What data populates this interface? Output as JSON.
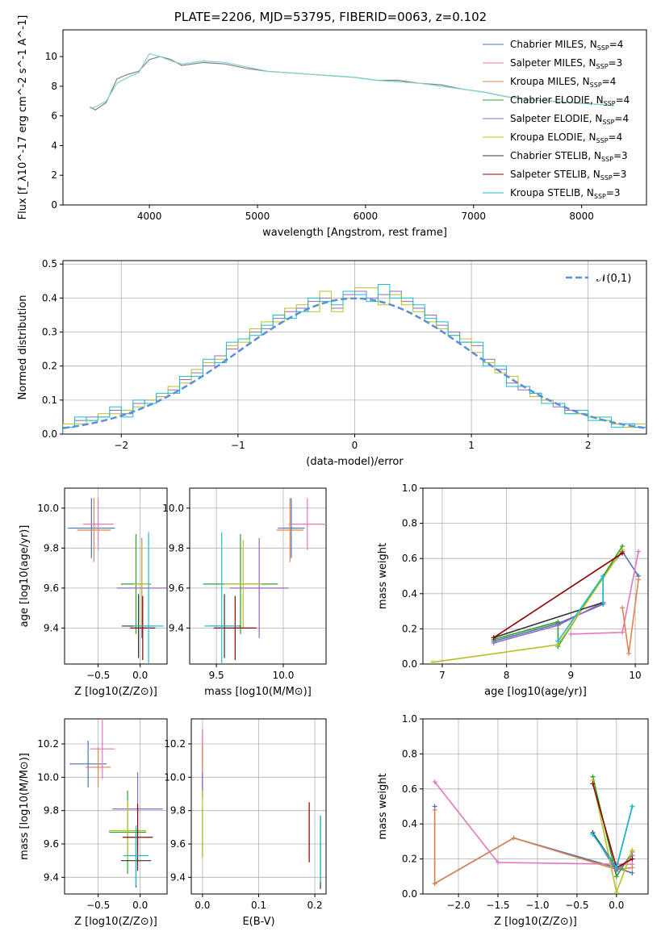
{
  "title": "PLATE=2206, MJD=53795, FIBERID=0063, z=0.102",
  "colors": [
    "#4c72b0",
    "#e377c2",
    "#dd8452",
    "#2ca02c",
    "#9467bd",
    "#bcbd22",
    "#333333",
    "#8c0000",
    "#17becf"
  ],
  "legend_labels": [
    "Chabrier MILES, N$SSP$=4",
    "Salpeter MILES, N$SSP$=3",
    "Kroupa MILES, N$SSP$=4",
    "Chabrier ELODIE, N$SSP$=4",
    "Salpeter ELODIE, N$SSP$=4",
    "Kroupa ELODIE, N$SSP$=4",
    "Chabrier STELIB, N$SSP$=3",
    "Salpeter STELIB, N$SSP$=3",
    "Kroupa STELIB, N$SSP$=3"
  ],
  "chart_data": [
    {
      "id": "spectrum",
      "type": "line",
      "xlabel": "wavelength [Angstrom, rest frame]",
      "ylabel": "Flux [f_λ10^-17 erg cm^-2 s^-1 A^-1]",
      "xlim": [
        3200,
        8600
      ],
      "ylim": [
        0,
        11.8
      ],
      "xticks": [
        4000,
        5000,
        6000,
        7000,
        8000
      ],
      "yticks": [
        0,
        2,
        4,
        6,
        8,
        10
      ],
      "series": [
        {
          "name": "data",
          "x": [
            3450,
            3500,
            3600,
            3700,
            3800,
            3900,
            4000,
            4100,
            4200,
            4300,
            4500,
            4700,
            4900,
            5100,
            5300,
            5500,
            5700,
            5900,
            6100,
            6300,
            6500,
            6700,
            6900,
            7100,
            7300,
            7500,
            7700,
            7900,
            8100,
            8300
          ],
          "y": [
            6.6,
            6.4,
            6.9,
            8.5,
            8.8,
            9.0,
            9.8,
            10.0,
            9.8,
            9.4,
            9.6,
            9.5,
            9.2,
            9.0,
            8.9,
            8.8,
            8.7,
            8.6,
            8.4,
            8.4,
            8.2,
            8.1,
            7.8,
            7.6,
            7.3,
            7.1,
            7.0,
            6.9,
            6.8,
            6.7
          ]
        },
        {
          "name": "model",
          "x": [
            3450,
            3500,
            3600,
            3700,
            3800,
            3900,
            4000,
            4100,
            4200,
            4300,
            4500,
            4700,
            4900,
            5100,
            5300,
            5500,
            5700,
            5900,
            6100,
            6300,
            6500,
            6700,
            6900,
            7100,
            7300,
            7500,
            7700,
            7900,
            8100,
            8300
          ],
          "y": [
            6.5,
            6.6,
            7.0,
            8.2,
            8.6,
            8.9,
            10.2,
            10.0,
            9.7,
            9.5,
            9.7,
            9.6,
            9.3,
            9.0,
            8.9,
            8.8,
            8.7,
            8.6,
            8.4,
            8.3,
            8.2,
            8.0,
            7.8,
            7.6,
            7.3,
            7.1,
            7.0,
            6.9,
            6.8,
            6.7
          ]
        }
      ]
    },
    {
      "id": "residuals",
      "type": "bar",
      "xlabel": "(data-model)/error",
      "ylabel": "Normed distribution",
      "xlim": [
        -2.5,
        2.5
      ],
      "ylim": [
        0,
        0.51
      ],
      "xticks": [
        -2,
        -1,
        0,
        1,
        2
      ],
      "yticks": [
        0,
        0.1,
        0.2,
        0.3,
        0.4,
        0.5
      ],
      "legend": "𝒩(0,1)",
      "bin_edges": [
        -2.5,
        -2.4,
        -2.3,
        -2.2,
        -2.1,
        -2.0,
        -1.9,
        -1.8,
        -1.7,
        -1.6,
        -1.5,
        -1.4,
        -1.3,
        -1.2,
        -1.1,
        -1.0,
        -0.9,
        -0.8,
        -0.7,
        -0.6,
        -0.5,
        -0.4,
        -0.3,
        -0.2,
        -0.1,
        0.0,
        0.1,
        0.2,
        0.3,
        0.4,
        0.5,
        0.6,
        0.7,
        0.8,
        0.9,
        1.0,
        1.1,
        1.2,
        1.3,
        1.4,
        1.5,
        1.6,
        1.7,
        1.8,
        1.9,
        2.0,
        2.1,
        2.2,
        2.3,
        2.4,
        2.5
      ],
      "series": [
        {
          "values": [
            0.02,
            0.04,
            0.05,
            0.05,
            0.07,
            0.06,
            0.09,
            0.1,
            0.11,
            0.13,
            0.16,
            0.18,
            0.2,
            0.23,
            0.25,
            0.28,
            0.3,
            0.31,
            0.34,
            0.36,
            0.37,
            0.39,
            0.4,
            0.37,
            0.41,
            0.42,
            0.4,
            0.41,
            0.42,
            0.39,
            0.37,
            0.35,
            0.32,
            0.3,
            0.27,
            0.26,
            0.22,
            0.19,
            0.15,
            0.13,
            0.12,
            0.1,
            0.08,
            0.07,
            0.06,
            0.05,
            0.04,
            0.03,
            0.03,
            0.02
          ]
        },
        {
          "values": [
            0.03,
            0.03,
            0.04,
            0.06,
            0.06,
            0.07,
            0.08,
            0.1,
            0.11,
            0.14,
            0.15,
            0.19,
            0.21,
            0.22,
            0.26,
            0.27,
            0.31,
            0.33,
            0.33,
            0.37,
            0.38,
            0.36,
            0.42,
            0.36,
            0.4,
            0.43,
            0.43,
            0.38,
            0.41,
            0.38,
            0.36,
            0.33,
            0.31,
            0.29,
            0.28,
            0.24,
            0.21,
            0.18,
            0.17,
            0.14,
            0.11,
            0.1,
            0.09,
            0.06,
            0.06,
            0.05,
            0.04,
            0.03,
            0.02,
            0.03
          ]
        },
        {
          "values": [
            0.02,
            0.05,
            0.04,
            0.05,
            0.08,
            0.05,
            0.1,
            0.09,
            0.12,
            0.12,
            0.17,
            0.17,
            0.22,
            0.21,
            0.27,
            0.28,
            0.29,
            0.32,
            0.35,
            0.34,
            0.36,
            0.4,
            0.39,
            0.38,
            0.42,
            0.41,
            0.39,
            0.44,
            0.4,
            0.4,
            0.38,
            0.34,
            0.33,
            0.29,
            0.27,
            0.27,
            0.2,
            0.2,
            0.14,
            0.14,
            0.12,
            0.09,
            0.09,
            0.06,
            0.07,
            0.04,
            0.05,
            0.02,
            0.03,
            0.02
          ]
        }
      ],
      "gaussian": {
        "mu": 0,
        "sigma": 1
      }
    },
    {
      "id": "age-vs-Z",
      "type": "scatter",
      "xlabel": "Z [log10(Z/Z⊙)]",
      "ylabel": "age  [log10(age/yr)]",
      "xlim": [
        -0.9,
        0.32
      ],
      "ylim": [
        9.22,
        10.1
      ],
      "xticks": [
        -0.5,
        0.0
      ],
      "yticks": [
        9.4,
        9.6,
        9.8,
        10.0
      ],
      "points": [
        {
          "x": -0.58,
          "y": 9.9,
          "xerr": 0.28,
          "yerr": 0.15,
          "c": 0
        },
        {
          "x": -0.5,
          "y": 9.92,
          "xerr": 0.18,
          "yerr": 0.13,
          "c": 1
        },
        {
          "x": -0.55,
          "y": 9.89,
          "xerr": 0.2,
          "yerr": 0.16,
          "c": 2
        },
        {
          "x": -0.05,
          "y": 9.62,
          "xerr": 0.18,
          "yerr": 0.25,
          "c": 3
        },
        {
          "x": 0.02,
          "y": 9.6,
          "xerr": 0.3,
          "yerr": 0.25,
          "c": 4
        },
        {
          "x": 0.02,
          "y": 9.62,
          "xerr": 0.1,
          "yerr": 0.22,
          "c": 5
        },
        {
          "x": -0.02,
          "y": 9.41,
          "xerr": 0.2,
          "yerr": 0.16,
          "c": 6
        },
        {
          "x": 0.03,
          "y": 9.4,
          "xerr": 0.15,
          "yerr": 0.16,
          "c": 7
        },
        {
          "x": 0.1,
          "y": 9.41,
          "xerr": 0.18,
          "yerr": 0.47,
          "c": 8
        }
      ]
    },
    {
      "id": "age-vs-mass",
      "type": "scatter",
      "xlabel": "mass [log10(M/M⊙)]",
      "ylabel": "",
      "xlim": [
        9.3,
        10.32
      ],
      "ylim": [
        9.22,
        10.1
      ],
      "xticks": [
        9.5,
        10.0
      ],
      "yticks": [
        9.4,
        9.6,
        9.8,
        10.0
      ],
      "points": [
        {
          "x": 10.06,
          "y": 9.9,
          "xerr": 0.1,
          "yerr": 0.15,
          "c": 0
        },
        {
          "x": 10.18,
          "y": 9.92,
          "xerr": 0.14,
          "yerr": 0.13,
          "c": 1
        },
        {
          "x": 10.05,
          "y": 9.89,
          "xerr": 0.1,
          "yerr": 0.16,
          "c": 2
        },
        {
          "x": 9.68,
          "y": 9.62,
          "xerr": 0.28,
          "yerr": 0.25,
          "c": 3
        },
        {
          "x": 9.82,
          "y": 9.6,
          "xerr": 0.22,
          "yerr": 0.25,
          "c": 4
        },
        {
          "x": 9.7,
          "y": 9.62,
          "xerr": 0.14,
          "yerr": 0.22,
          "c": 5
        },
        {
          "x": 9.56,
          "y": 9.41,
          "xerr": 0.12,
          "yerr": 0.16,
          "c": 6
        },
        {
          "x": 9.64,
          "y": 9.4,
          "xerr": 0.16,
          "yerr": 0.16,
          "c": 7
        },
        {
          "x": 9.54,
          "y": 9.41,
          "xerr": 0.13,
          "yerr": 0.47,
          "c": 8
        }
      ]
    },
    {
      "id": "mass-weight-vs-age",
      "type": "line",
      "xlabel": "age  [log10(age/yr)]",
      "ylabel": "mass weight",
      "xlim": [
        6.7,
        10.2
      ],
      "ylim": [
        0,
        1.0
      ],
      "xticks": [
        7,
        8,
        9,
        10
      ],
      "yticks": [
        0,
        0.2,
        0.4,
        0.6,
        0.8,
        1.0
      ],
      "series": [
        {
          "c": 0,
          "x": [
            7.8,
            8.8,
            9.5,
            9.5,
            9.8,
            10.05
          ],
          "y": [
            0.13,
            0.23,
            0.34,
            0.5,
            0.64,
            0.5
          ]
        },
        {
          "c": 1,
          "x": [
            9.0,
            9.8,
            10.05
          ],
          "y": [
            0.17,
            0.18,
            0.64
          ]
        },
        {
          "c": 2,
          "x": [
            9.8,
            9.9,
            10.05
          ],
          "y": [
            0.32,
            0.06,
            0.48
          ]
        },
        {
          "c": 3,
          "x": [
            7.8,
            8.8,
            8.8,
            9.8
          ],
          "y": [
            0.14,
            0.24,
            0.1,
            0.67
          ]
        },
        {
          "c": 4,
          "x": [
            7.8,
            8.8,
            9.5
          ],
          "y": [
            0.12,
            0.22,
            0.35
          ]
        },
        {
          "c": 5,
          "x": [
            6.85,
            8.8,
            9.8
          ],
          "y": [
            0.01,
            0.11,
            0.65
          ]
        },
        {
          "c": 6,
          "x": [
            7.8,
            9.5
          ],
          "y": [
            0.15,
            0.35
          ]
        },
        {
          "c": 7,
          "x": [
            7.8,
            9.8
          ],
          "y": [
            0.15,
            0.63
          ]
        },
        {
          "c": 8,
          "x": [
            8.8,
            9.5,
            9.5
          ],
          "y": [
            0.13,
            0.5,
            0.35
          ]
        }
      ]
    },
    {
      "id": "mass-vs-Z",
      "type": "scatter",
      "xlabel": "Z [log10(Z/Z⊙)]",
      "ylabel": "mass [log10(M/M⊙)]",
      "xlim": [
        -0.9,
        0.32
      ],
      "ylim": [
        9.3,
        10.35
      ],
      "xticks": [
        -0.5,
        0.0
      ],
      "yticks": [
        9.4,
        9.6,
        9.8,
        10.0,
        10.2
      ],
      "points": [
        {
          "x": -0.62,
          "y": 10.08,
          "xerr": 0.22,
          "yerr": 0.14,
          "c": 0
        },
        {
          "x": -0.45,
          "y": 10.17,
          "xerr": 0.15,
          "yerr": 0.18,
          "c": 1
        },
        {
          "x": -0.5,
          "y": 10.06,
          "xerr": 0.15,
          "yerr": 0.12,
          "c": 2
        },
        {
          "x": -0.15,
          "y": 9.67,
          "xerr": 0.22,
          "yerr": 0.25,
          "c": 3
        },
        {
          "x": -0.03,
          "y": 9.81,
          "xerr": 0.3,
          "yerr": 0.22,
          "c": 4
        },
        {
          "x": -0.15,
          "y": 9.68,
          "xerr": 0.22,
          "yerr": 0.18,
          "c": 5
        },
        {
          "x": -0.05,
          "y": 9.5,
          "xerr": 0.18,
          "yerr": 0.16,
          "c": 6
        },
        {
          "x": -0.03,
          "y": 9.64,
          "xerr": 0.18,
          "yerr": 0.2,
          "c": 7
        },
        {
          "x": -0.05,
          "y": 9.53,
          "xerr": 0.15,
          "yerr": 0.18,
          "c": 8
        }
      ]
    },
    {
      "id": "mass-vs-EBV",
      "type": "scatter",
      "xlabel": "E(B-V)",
      "ylabel": "",
      "xlim": [
        -0.02,
        0.22
      ],
      "ylim": [
        9.3,
        10.35
      ],
      "xticks": [
        0.0,
        0.1,
        0.2
      ],
      "yticks": [
        9.4,
        9.6,
        9.8,
        10.0,
        10.2
      ],
      "points": [
        {
          "x": 0.0,
          "y": 10.08,
          "xerr": 0,
          "yerr": 0.2,
          "c": 0
        },
        {
          "x": 0.0,
          "y": 10.17,
          "xerr": 0,
          "yerr": 0.12,
          "c": 1
        },
        {
          "x": 0.0,
          "y": 10.06,
          "xerr": 0,
          "yerr": 0.14,
          "c": 2
        },
        {
          "x": 0.0,
          "y": 9.67,
          "xerr": 0,
          "yerr": 0.15,
          "c": 3
        },
        {
          "x": 0.0,
          "y": 9.95,
          "xerr": 0,
          "yerr": 0.08,
          "c": 4
        },
        {
          "x": 0.0,
          "y": 9.72,
          "xerr": 0,
          "yerr": 0.2,
          "c": 5
        },
        {
          "x": 0.21,
          "y": 9.55,
          "xerr": 0,
          "yerr": 0.22,
          "c": 6
        },
        {
          "x": 0.19,
          "y": 9.67,
          "xerr": 0,
          "yerr": 0.18,
          "c": 7
        },
        {
          "x": 0.21,
          "y": 9.57,
          "xerr": 0,
          "yerr": 0.2,
          "c": 8
        }
      ]
    },
    {
      "id": "mass-weight-vs-Z",
      "type": "line",
      "xlabel": "Z [log10(Z/Z⊙)]",
      "ylabel": "mass weight",
      "xlim": [
        -2.45,
        0.4
      ],
      "ylim": [
        0,
        1.0
      ],
      "xticks": [
        -2.0,
        -1.5,
        -1.0,
        -0.5,
        0.0
      ],
      "yticks": [
        0,
        0.2,
        0.4,
        0.6,
        0.8,
        1.0
      ],
      "series": [
        {
          "c": 0,
          "x": [
            -2.3,
            -2.3,
            -1.3,
            0.0,
            0.2
          ],
          "y": [
            0.5,
            0.06,
            0.32,
            0.15,
            0.12
          ]
        },
        {
          "c": 1,
          "x": [
            -2.3,
            -1.5,
            0.0,
            0.2
          ],
          "y": [
            0.64,
            0.18,
            0.17,
            0.17
          ]
        },
        {
          "c": 2,
          "x": [
            -2.3,
            -2.3,
            -1.3,
            0.0,
            0.2
          ],
          "y": [
            0.48,
            0.06,
            0.32,
            0.14,
            0.15
          ]
        },
        {
          "c": 3,
          "x": [
            -0.3,
            0.0,
            0.2
          ],
          "y": [
            0.67,
            0.1,
            0.24
          ]
        },
        {
          "c": 4,
          "x": [
            -0.3,
            0.0,
            0.2
          ],
          "y": [
            0.35,
            0.13,
            0.22
          ]
        },
        {
          "c": 5,
          "x": [
            -0.3,
            0.0,
            0.2
          ],
          "y": [
            0.65,
            0.01,
            0.25
          ]
        },
        {
          "c": 6,
          "x": [
            -0.3,
            0.0,
            0.2
          ],
          "y": [
            0.35,
            0.15,
            0.5
          ]
        },
        {
          "c": 7,
          "x": [
            -0.3,
            0.0,
            0.2
          ],
          "y": [
            0.63,
            0.15,
            0.2
          ]
        },
        {
          "c": 8,
          "x": [
            -0.3,
            0.0,
            0.2
          ],
          "y": [
            0.34,
            0.15,
            0.5
          ]
        }
      ]
    }
  ]
}
